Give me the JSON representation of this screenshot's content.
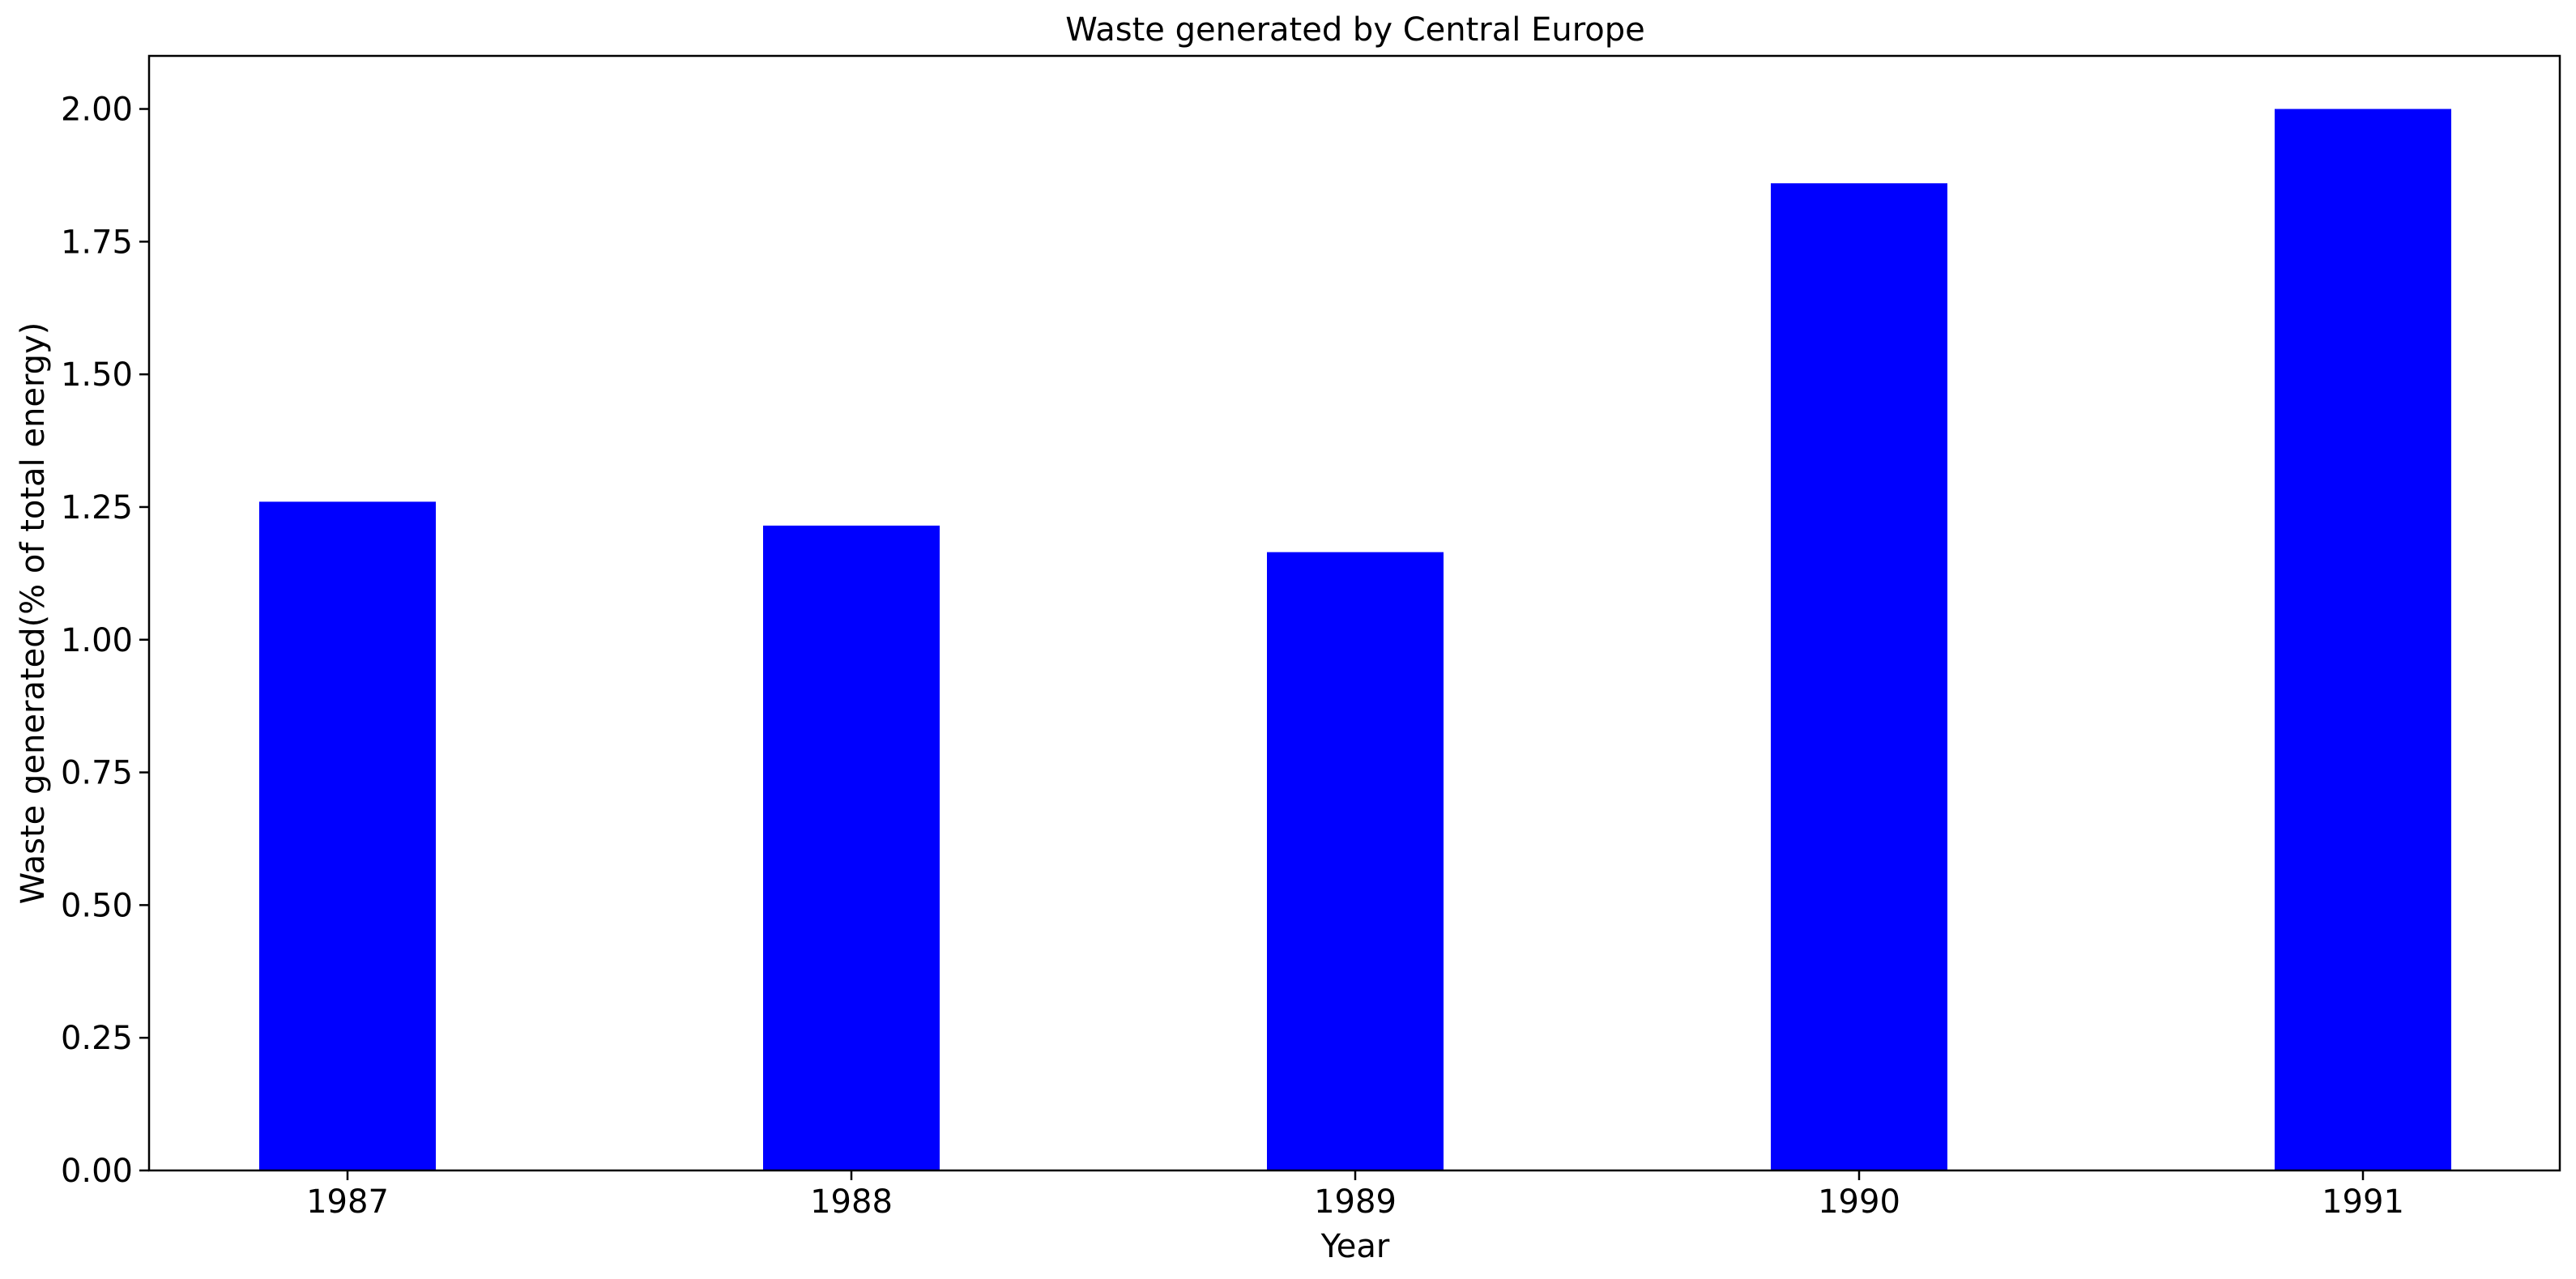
{
  "chart_data": {
    "type": "bar",
    "title": "Waste generated by Central Europe",
    "xlabel": "Year",
    "ylabel": "Waste generated(% of total energy)",
    "categories": [
      "1987",
      "1988",
      "1989",
      "1990",
      "1991"
    ],
    "values": [
      1.26,
      1.215,
      1.165,
      1.86,
      2.0
    ],
    "ylim": [
      0,
      2.1
    ],
    "yticks": [
      "0.00",
      "0.25",
      "0.50",
      "0.75",
      "1.00",
      "1.25",
      "1.50",
      "1.75",
      "2.00"
    ],
    "ytick_values": [
      0,
      0.25,
      0.5,
      0.75,
      1.0,
      1.25,
      1.5,
      1.75,
      2.0
    ],
    "bar_color": "#0000ff",
    "grid": false,
    "legend": "none"
  }
}
